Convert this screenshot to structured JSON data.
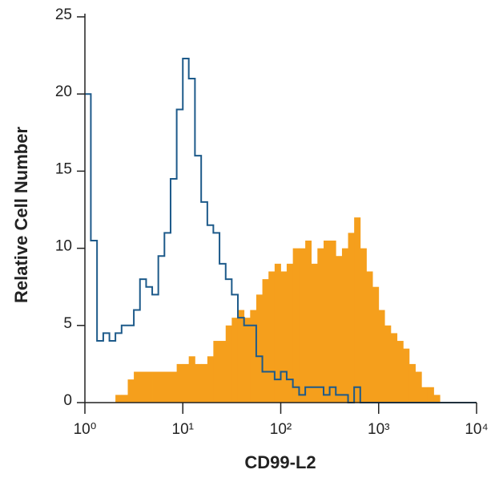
{
  "chart_data": {
    "type": "step-histogram",
    "xlabel": "CD99-L2",
    "ylabel": "Relative Cell Number",
    "x": [
      1,
      1.15,
      1.33,
      1.54,
      1.78,
      2.05,
      2.37,
      2.74,
      3.16,
      3.65,
      4.22,
      4.87,
      5.62,
      6.49,
      7.5,
      8.66,
      10,
      11.5,
      13.3,
      15.4,
      17.8,
      20.5,
      23.7,
      27.4,
      31.6,
      36.5,
      42.2,
      48.7,
      56.2,
      64.9,
      75,
      86.6,
      100,
      115,
      133,
      154,
      178,
      205,
      237,
      274,
      316,
      365,
      422,
      487,
      562,
      649,
      750,
      866,
      1000,
      1150,
      1330,
      1540,
      1780,
      2050,
      2370,
      2740,
      3160,
      3650,
      4220,
      4870,
      5620,
      6490,
      7500,
      8660,
      10000
    ],
    "series": [
      {
        "color": "#f59f1c",
        "fill": true,
        "values": [
          0,
          0,
          0,
          0,
          0,
          0.5,
          0.5,
          1.5,
          2,
          2,
          2,
          2,
          2,
          2,
          2,
          2.5,
          2.5,
          3,
          2.5,
          2.5,
          3,
          4,
          4,
          5,
          5.5,
          6,
          5.5,
          6,
          7,
          8,
          8.5,
          9,
          8.5,
          9,
          10,
          10,
          10.5,
          9,
          10,
          10.5,
          10.5,
          9.5,
          10,
          11,
          12,
          10,
          8.5,
          7.5,
          6,
          5,
          4.5,
          4,
          3.5,
          2.5,
          2,
          1,
          1,
          0.5,
          0,
          0,
          0,
          0,
          0,
          0,
          0
        ]
      },
      {
        "color": "#1d5a8a",
        "fill": false,
        "values": [
          20,
          10.5,
          4,
          4.5,
          4,
          4.5,
          5,
          5,
          6,
          8,
          7.5,
          7,
          9.5,
          11,
          14.5,
          19,
          22.3,
          21,
          16,
          13,
          11.5,
          11,
          9,
          8,
          7,
          5.5,
          5,
          5,
          3,
          2,
          2,
          1.5,
          2,
          1.5,
          1,
          0.5,
          1,
          1,
          1,
          0.5,
          1,
          0.5,
          0.5,
          0,
          1,
          0,
          0,
          0,
          0,
          0,
          0,
          0,
          0,
          0,
          0,
          0,
          0,
          0,
          0,
          0,
          0,
          0,
          0,
          0,
          0
        ]
      }
    ],
    "xscale": "log",
    "xlim": [
      1,
      10000
    ],
    "xticks": [
      {
        "value": 1,
        "label": "10⁰"
      },
      {
        "value": 10,
        "label": "10¹"
      },
      {
        "value": 100,
        "label": "10²"
      },
      {
        "value": 1000,
        "label": "10³"
      },
      {
        "value": 10000,
        "label": "10⁴"
      }
    ],
    "ylim": [
      0,
      25
    ],
    "yticks": [
      0,
      5,
      10,
      15,
      20,
      25
    ]
  }
}
